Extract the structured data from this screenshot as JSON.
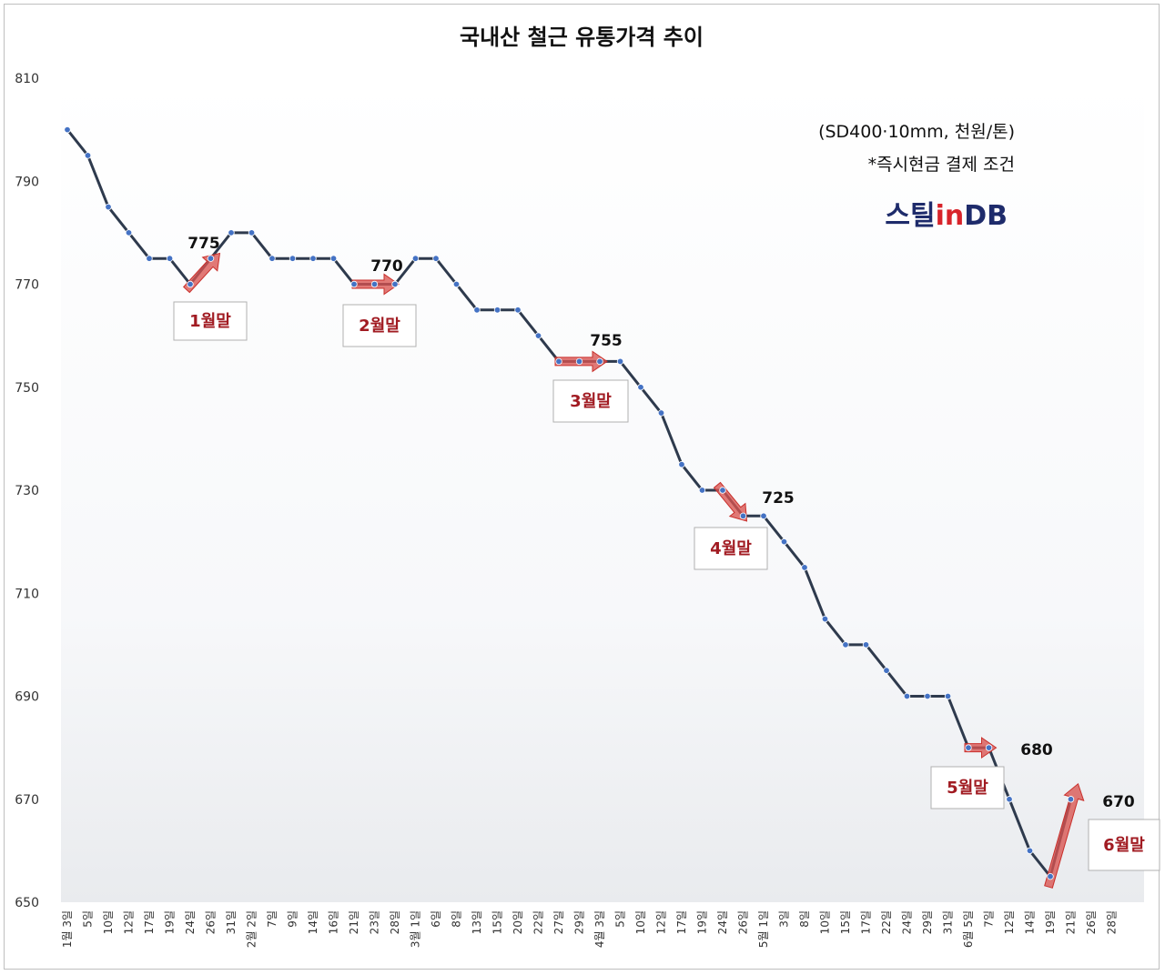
{
  "chart_data": {
    "type": "line",
    "title": "국내산 철근 유통가격 추이",
    "unit_note": "(SD400·10mm, 천원/톤)",
    "condition_note": "*즉시현금 결제 조건",
    "brand": {
      "part1": "스틸",
      "part2": "in",
      "part3": "DB"
    },
    "ylim": [
      650,
      810
    ],
    "yticks": [
      650,
      670,
      690,
      710,
      730,
      750,
      770,
      790,
      810
    ],
    "grid": false,
    "x": [
      "1월 3일",
      "5일",
      "10일",
      "12일",
      "17일",
      "19일",
      "24일",
      "26일",
      "31일",
      "2월 2일",
      "7일",
      "9일",
      "14일",
      "16일",
      "21일",
      "23일",
      "28일",
      "3월 1일",
      "6일",
      "8일",
      "13일",
      "15일",
      "20일",
      "22일",
      "27일",
      "29일",
      "4월 3일",
      "5일",
      "10일",
      "12일",
      "17일",
      "19일",
      "24일",
      "26일",
      "5월 1일",
      "3일",
      "8일",
      "10일",
      "15일",
      "17일",
      "22일",
      "24일",
      "29일",
      "31일",
      "6월 5일",
      "7일",
      "12일",
      "14일",
      "19일",
      "21일",
      "26일",
      "28일"
    ],
    "series": [
      {
        "values": [
          800,
          795,
          785,
          780,
          775,
          775,
          770,
          775,
          780,
          780,
          775,
          775,
          775,
          775,
          770,
          770,
          770,
          775,
          775,
          770,
          765,
          765,
          765,
          760,
          755,
          755,
          755,
          755,
          750,
          745,
          735,
          730,
          730,
          725,
          725,
          720,
          715,
          705,
          700,
          700,
          695,
          690,
          690,
          690,
          680,
          680,
          670,
          660,
          655,
          670,
          null,
          null
        ],
        "color": "#2e3a4d"
      }
    ],
    "annotations": [
      {
        "label": "775",
        "x": "24일",
        "month_end": "1월말",
        "arrow": "up"
      },
      {
        "label": "770",
        "x": "23일",
        "month_end": "2월말",
        "arrow": "flat"
      },
      {
        "label": "755",
        "x": "29일",
        "month_end": "3월말",
        "arrow": "flat"
      },
      {
        "label": "725",
        "x": "26일",
        "month_end": "4월말",
        "arrow": "down"
      },
      {
        "label": "680",
        "x": "7일",
        "month_end": "5월말",
        "arrow": "flat"
      },
      {
        "label": "670",
        "x": "21일",
        "month_end": "6월말",
        "arrow": "up"
      }
    ],
    "colors": {
      "line": "#2e3a4d",
      "marker": "#4472c4",
      "arrow": "#d9534f",
      "month_label": "#a11b22",
      "drop_line": "#bcd0ea"
    }
  }
}
